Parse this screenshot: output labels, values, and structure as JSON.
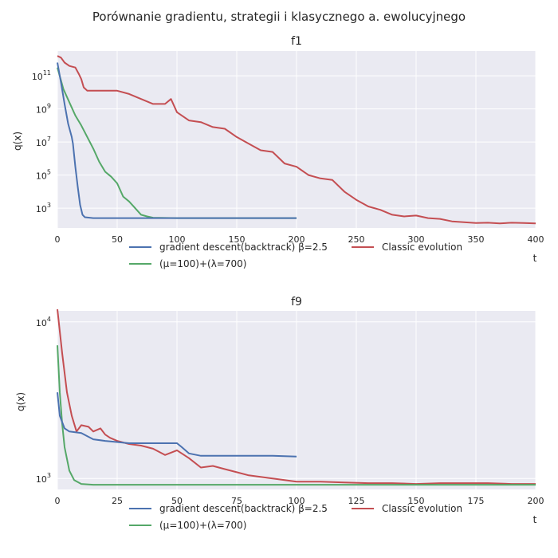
{
  "figure": {
    "suptitle": "Porównanie gradientu, strategii i klasycznego a. ewolucyjnego"
  },
  "chart_data": [
    {
      "type": "line",
      "title": "f1",
      "xlabel": "t",
      "ylabel": "q(x)",
      "yscale": "log",
      "xlim": [
        0,
        400
      ],
      "ylim_exponent": [
        1.8,
        12.5
      ],
      "xticks": [
        "0",
        "50",
        "100",
        "150",
        "200",
        "250",
        "300",
        "350",
        "400"
      ],
      "yticks": [
        {
          "base": "10",
          "exp": "3",
          "e": 3
        },
        {
          "base": "10",
          "exp": "5",
          "e": 5
        },
        {
          "base": "10",
          "exp": "7",
          "e": 7
        },
        {
          "base": "10",
          "exp": "9",
          "e": 9
        },
        {
          "base": "10",
          "exp": "11",
          "e": 11
        }
      ],
      "grid": true,
      "legend_position": "below",
      "series": [
        {
          "name": "gradient descent(backtrack) β=2.5",
          "color": "#4c72b0",
          "log10_points": [
            [
              0,
              11.8
            ],
            [
              3,
              10.6
            ],
            [
              6,
              9.3
            ],
            [
              9,
              8.1
            ],
            [
              12,
              7.3
            ],
            [
              13,
              6.9
            ],
            [
              15,
              5.5
            ],
            [
              17,
              4.3
            ],
            [
              19,
              3.2
            ],
            [
              21,
              2.6
            ],
            [
              23,
              2.45
            ],
            [
              30,
              2.4
            ],
            [
              100,
              2.4
            ],
            [
              200,
              2.4
            ]
          ]
        },
        {
          "name": "(μ=100)+(λ=700)",
          "color": "#55a868",
          "log10_points": [
            [
              0,
              11.5
            ],
            [
              5,
              10.2
            ],
            [
              10,
              9.4
            ],
            [
              15,
              8.6
            ],
            [
              20,
              8.0
            ],
            [
              25,
              7.3
            ],
            [
              30,
              6.6
            ],
            [
              35,
              5.8
            ],
            [
              40,
              5.2
            ],
            [
              45,
              4.9
            ],
            [
              50,
              4.5
            ],
            [
              55,
              3.7
            ],
            [
              60,
              3.4
            ],
            [
              65,
              3.0
            ],
            [
              70,
              2.6
            ],
            [
              75,
              2.5
            ],
            [
              80,
              2.42
            ],
            [
              100,
              2.4
            ],
            [
              200,
              2.4
            ]
          ]
        },
        {
          "name": "Classic evolution",
          "color": "#c44e52",
          "log10_points": [
            [
              0,
              12.2
            ],
            [
              3,
              12.1
            ],
            [
              6,
              11.8
            ],
            [
              10,
              11.6
            ],
            [
              15,
              11.5
            ],
            [
              18,
              11.1
            ],
            [
              20,
              10.8
            ],
            [
              22,
              10.3
            ],
            [
              25,
              10.1
            ],
            [
              50,
              10.1
            ],
            [
              60,
              9.9
            ],
            [
              70,
              9.6
            ],
            [
              80,
              9.3
            ],
            [
              90,
              9.3
            ],
            [
              95,
              9.6
            ],
            [
              100,
              8.8
            ],
            [
              110,
              8.3
            ],
            [
              120,
              8.2
            ],
            [
              130,
              7.9
            ],
            [
              140,
              7.8
            ],
            [
              150,
              7.3
            ],
            [
              160,
              6.9
            ],
            [
              170,
              6.5
            ],
            [
              180,
              6.4
            ],
            [
              190,
              5.7
            ],
            [
              200,
              5.5
            ],
            [
              210,
              5.0
            ],
            [
              220,
              4.8
            ],
            [
              230,
              4.7
            ],
            [
              240,
              4.0
            ],
            [
              250,
              3.5
            ],
            [
              260,
              3.1
            ],
            [
              270,
              2.9
            ],
            [
              280,
              2.6
            ],
            [
              290,
              2.5
            ],
            [
              300,
              2.55
            ],
            [
              310,
              2.4
            ],
            [
              320,
              2.35
            ],
            [
              330,
              2.2
            ],
            [
              340,
              2.15
            ],
            [
              350,
              2.1
            ],
            [
              360,
              2.12
            ],
            [
              370,
              2.08
            ],
            [
              380,
              2.12
            ],
            [
              390,
              2.1
            ],
            [
              400,
              2.08
            ]
          ]
        }
      ]
    },
    {
      "type": "line",
      "title": "f9",
      "xlabel": "t",
      "ylabel": "q(x)",
      "yscale": "log",
      "xlim": [
        0,
        200
      ],
      "ylim_exponent": [
        2.93,
        4.07
      ],
      "xticks": [
        "0",
        "25",
        "50",
        "75",
        "100",
        "125",
        "150",
        "175",
        "200"
      ],
      "yticks": [
        {
          "base": "10",
          "exp": "3",
          "e": 3
        },
        {
          "base": "10",
          "exp": "4",
          "e": 4
        }
      ],
      "grid": true,
      "legend_position": "below",
      "series": [
        {
          "name": "gradient descent(backtrack) β=2.5",
          "color": "#4c72b0",
          "log10_points": [
            [
              0,
              3.55
            ],
            [
              1,
              3.4
            ],
            [
              3,
              3.32
            ],
            [
              5,
              3.3
            ],
            [
              10,
              3.29
            ],
            [
              15,
              3.25
            ],
            [
              20,
              3.24
            ],
            [
              30,
              3.225
            ],
            [
              40,
              3.225
            ],
            [
              50,
              3.225
            ],
            [
              52,
              3.2
            ],
            [
              55,
              3.16
            ],
            [
              60,
              3.145
            ],
            [
              70,
              3.145
            ],
            [
              80,
              3.145
            ],
            [
              90,
              3.145
            ],
            [
              100,
              3.14
            ]
          ]
        },
        {
          "name": "(μ=100)+(λ=700)",
          "color": "#55a868",
          "log10_points": [
            [
              0,
              3.85
            ],
            [
              1,
              3.55
            ],
            [
              2,
              3.35
            ],
            [
              3,
              3.2
            ],
            [
              5,
              3.05
            ],
            [
              7,
              2.99
            ],
            [
              10,
              2.965
            ],
            [
              15,
              2.96
            ],
            [
              100,
              2.96
            ],
            [
              200,
              2.96
            ]
          ]
        },
        {
          "name": "Classic evolution",
          "color": "#c44e52",
          "log10_points": [
            [
              0,
              4.08
            ],
            [
              2,
              3.8
            ],
            [
              4,
              3.55
            ],
            [
              6,
              3.4
            ],
            [
              8,
              3.3
            ],
            [
              10,
              3.34
            ],
            [
              13,
              3.33
            ],
            [
              15,
              3.3
            ],
            [
              18,
              3.32
            ],
            [
              20,
              3.28
            ],
            [
              22,
              3.26
            ],
            [
              25,
              3.24
            ],
            [
              30,
              3.22
            ],
            [
              35,
              3.21
            ],
            [
              40,
              3.19
            ],
            [
              45,
              3.15
            ],
            [
              50,
              3.18
            ],
            [
              55,
              3.13
            ],
            [
              60,
              3.07
            ],
            [
              65,
              3.08
            ],
            [
              70,
              3.06
            ],
            [
              75,
              3.04
            ],
            [
              80,
              3.02
            ],
            [
              90,
              3.0
            ],
            [
              100,
              2.98
            ],
            [
              110,
              2.98
            ],
            [
              120,
              2.975
            ],
            [
              130,
              2.97
            ],
            [
              140,
              2.97
            ],
            [
              150,
              2.965
            ],
            [
              160,
              2.97
            ],
            [
              170,
              2.97
            ],
            [
              180,
              2.97
            ],
            [
              190,
              2.965
            ],
            [
              200,
              2.965
            ]
          ]
        }
      ]
    }
  ]
}
